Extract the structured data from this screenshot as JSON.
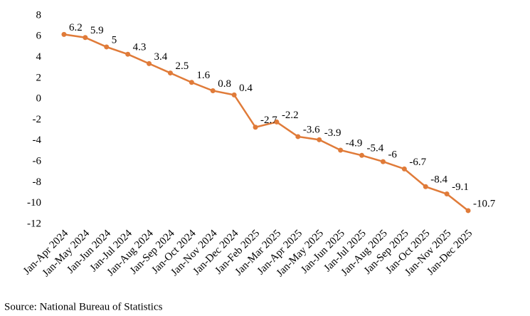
{
  "chart_data": {
    "type": "line",
    "categories": [
      "Jan-Apr 2024",
      "Jan-May 2024",
      "Jan-Jun 2024",
      "Jan-Jul 2024",
      "Jan-Aug 2024",
      "Jan-Sep 2024",
      "Jan-Oct 2024",
      "Jan-Nov 2024",
      "Jan-Dec 2024",
      "Jan-Feb 2025",
      "Jan-Mar 2025",
      "Jan-Apr 2025",
      "Jan-May 2025",
      "Jan-Jun 2025",
      "Jan-Jul 2025",
      "Jan-Aug 2025",
      "Jan-Sep 2025",
      "Jan-Oct 2025",
      "Jan-Nov 2025",
      "Jan-Dec 2025"
    ],
    "values": [
      6.2,
      5.9,
      5,
      4.3,
      3.4,
      2.5,
      1.6,
      0.8,
      0.4,
      -2.7,
      -2.2,
      -3.6,
      -3.9,
      -4.9,
      -5.4,
      -6,
      -6.7,
      -8.4,
      -9.1,
      -10.7
    ],
    "color": "#e07b39",
    "ylim": [
      -12,
      8
    ],
    "yticks": [
      -12,
      -10,
      -8,
      -6,
      -4,
      -2,
      0,
      2,
      4,
      6,
      8
    ],
    "grid": false,
    "source": "Source: National Bureau of Statistics"
  }
}
